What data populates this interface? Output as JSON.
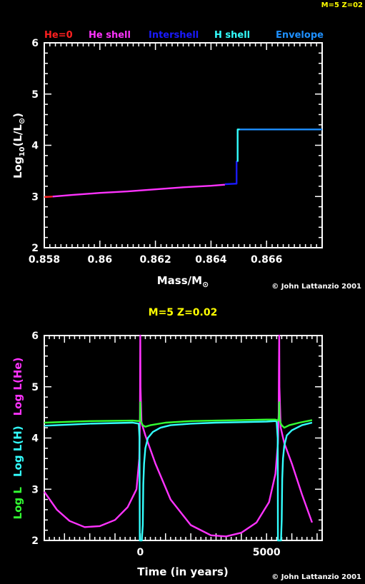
{
  "corner_label": "M=5 Z=02",
  "chart_data": [
    {
      "type": "line",
      "legend": [
        {
          "name": "He=0",
          "color": "#ff2020"
        },
        {
          "name": "He shell",
          "color": "#ff33ff"
        },
        {
          "name": "Intershell",
          "color": "#1a1aff"
        },
        {
          "name": "H shell",
          "color": "#33ffff"
        },
        {
          "name": "Envelope",
          "color": "#1e90ff"
        }
      ],
      "xlabel": "Mass/M",
      "xlabel_sub": "⊙",
      "ylabel": "Log",
      "ylabel_sub": "10",
      "ylabel_paren": "(L/L",
      "ylabel_parsub": "⊙",
      "ylabel_close": ")",
      "xlim": [
        0.858,
        0.868
      ],
      "ylim": [
        2,
        6
      ],
      "xticks": [
        "0.858",
        "0.86",
        "0.862",
        "0.864",
        "0.866"
      ],
      "xtick_values": [
        0.858,
        0.86,
        0.862,
        0.864,
        0.866
      ],
      "yticks": [
        "2",
        "3",
        "4",
        "5",
        "6"
      ],
      "ytick_values": [
        2,
        3,
        4,
        5,
        6
      ],
      "credit": "© John Lattanzio 2001",
      "series": [
        {
          "name": "He=0",
          "color": "#ff2020",
          "x": [
            0.858,
            0.8583
          ],
          "y": [
            2.99,
            3.0
          ]
        },
        {
          "name": "He shell",
          "color": "#ff33ff",
          "x": [
            0.8583,
            0.859,
            0.86,
            0.861,
            0.862,
            0.863,
            0.864,
            0.8645
          ],
          "y": [
            3.0,
            3.03,
            3.07,
            3.1,
            3.14,
            3.18,
            3.21,
            3.23
          ]
        },
        {
          "name": "Intershell",
          "color": "#1a1aff",
          "x": [
            0.8645,
            0.86488,
            0.86488,
            0.86492,
            0.86492,
            0.86496
          ],
          "y": [
            3.24,
            3.25,
            3.25,
            3.25,
            3.68,
            3.68
          ]
        },
        {
          "name": "H shell",
          "color": "#33ffff",
          "x": [
            0.86496,
            0.86496,
            0.86503,
            0.86503
          ],
          "y": [
            3.68,
            4.31,
            4.31,
            4.31
          ]
        },
        {
          "name": "Envelope",
          "color": "#1e90ff",
          "x": [
            0.86503,
            0.868
          ],
          "y": [
            4.31,
            4.31
          ]
        }
      ]
    },
    {
      "type": "line",
      "title": "M=5 Z=0.02",
      "xlabel": "Time (in years)",
      "ylabels": [
        {
          "text": "Log L",
          "color": "#33ff33"
        },
        {
          "text": "Log L(H)",
          "color": "#33ffff"
        },
        {
          "text": "Log L(He)",
          "color": "#ff33ff"
        }
      ],
      "xlim": [
        -3800,
        7200
      ],
      "ylim": [
        2,
        6
      ],
      "xticks": [
        "0",
        "5000"
      ],
      "xtick_values": [
        0,
        5000
      ],
      "yticks": [
        "2",
        "3",
        "4",
        "5",
        "6"
      ],
      "ytick_values": [
        2,
        3,
        4,
        5,
        6
      ],
      "credit": "© John Lattanzio 2001",
      "series": [
        {
          "name": "Log L(He)",
          "color": "#ff33ff",
          "x": [
            -3800,
            -3300,
            -2800,
            -2200,
            -1600,
            -1000,
            -500,
            -150,
            -40,
            -15,
            -5,
            0,
            10,
            50,
            200,
            600,
            1200,
            2000,
            2800,
            3400,
            4000,
            4600,
            5100,
            5350,
            5450,
            5480,
            5490,
            5500,
            5510,
            5560,
            5700,
            6000,
            6400,
            6800
          ],
          "y": [
            2.95,
            2.6,
            2.38,
            2.26,
            2.28,
            2.4,
            2.65,
            3.0,
            3.6,
            4.3,
            5.3,
            6.0,
            5.0,
            4.3,
            4.05,
            3.5,
            2.8,
            2.3,
            2.1,
            2.08,
            2.15,
            2.35,
            2.75,
            3.3,
            3.9,
            4.5,
            5.3,
            6.0,
            5.0,
            4.2,
            3.9,
            3.5,
            2.9,
            2.35
          ]
        },
        {
          "name": "Log L(H)",
          "color": "#33ffff",
          "x": [
            -3800,
            -2000,
            -300,
            -60,
            -30,
            -20,
            20,
            60,
            100,
            120,
            150,
            200,
            300,
            500,
            800,
            1200,
            2000,
            3000,
            4000,
            5000,
            5350,
            5400,
            5440,
            5450,
            5530,
            5570,
            5600,
            5620,
            5650,
            5700,
            5800,
            6000,
            6400,
            6800
          ],
          "y": [
            4.24,
            4.28,
            4.3,
            4.28,
            4.0,
            2.0,
            2.0,
            2.0,
            2.3,
            3.1,
            3.5,
            3.8,
            4.0,
            4.12,
            4.2,
            4.25,
            4.28,
            4.3,
            4.31,
            4.32,
            4.33,
            4.32,
            4.0,
            2.0,
            2.0,
            2.0,
            2.4,
            3.2,
            3.6,
            3.85,
            4.05,
            4.15,
            4.25,
            4.3
          ]
        },
        {
          "name": "Log L",
          "color": "#33ff33",
          "x": [
            -3800,
            -2000,
            -300,
            -50,
            -10,
            0,
            10,
            50,
            100,
            200,
            400,
            1000,
            2000,
            3000,
            4000,
            5000,
            5350,
            5450,
            5490,
            5500,
            5510,
            5550,
            5600,
            5700,
            5900,
            6300,
            6800
          ],
          "y": [
            4.3,
            4.33,
            4.34,
            4.33,
            4.35,
            4.7,
            4.35,
            4.3,
            4.25,
            4.22,
            4.25,
            4.3,
            4.33,
            4.34,
            4.35,
            4.36,
            4.36,
            4.34,
            4.4,
            4.7,
            4.4,
            4.3,
            4.25,
            4.2,
            4.25,
            4.3,
            4.35
          ]
        }
      ]
    }
  ]
}
